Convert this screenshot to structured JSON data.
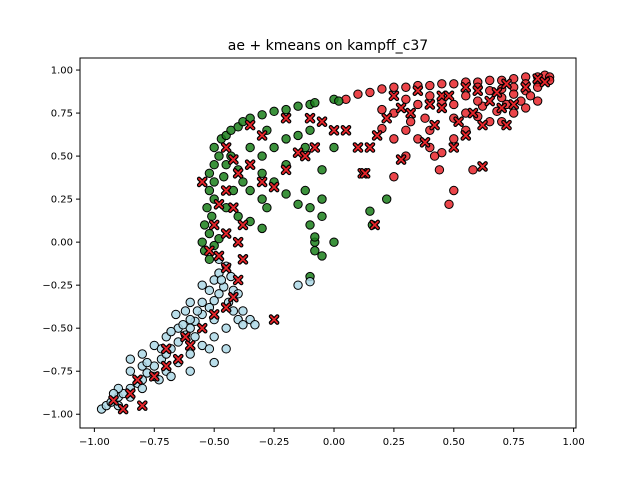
{
  "chart_data": {
    "type": "scatter",
    "title": "ae + kmeans on kampff_c37",
    "xlabel": "",
    "ylabel": "",
    "xlim": [
      -1.06,
      1.01
    ],
    "ylim": [
      -1.08,
      1.07
    ],
    "x_ticks": [
      -1.0,
      -0.75,
      -0.5,
      -0.25,
      0.0,
      0.25,
      0.5,
      0.75,
      1.0
    ],
    "x_tick_labels": [
      "−1.00",
      "−0.75",
      "−0.50",
      "−0.25",
      "0.00",
      "0.25",
      "0.50",
      "0.75",
      "1.00"
    ],
    "y_ticks": [
      -1.0,
      -0.75,
      -0.5,
      -0.25,
      0.0,
      0.25,
      0.5,
      0.75,
      1.0
    ],
    "y_tick_labels": [
      "−1.00",
      "−0.75",
      "−0.50",
      "−0.25",
      "0.00",
      "0.25",
      "0.50",
      "0.75",
      "1.00"
    ],
    "grid": false,
    "colors": {
      "cluster_red": "#e8252a",
      "cluster_green": "#1a7f1a",
      "cluster_lightblue": "#add8e6",
      "x_marker_fill": "#e8252a",
      "edge": "#000000"
    },
    "series": [
      {
        "marker": "circle",
        "color": "#e8252a",
        "points": [
          [
            0.05,
            0.83
          ],
          [
            0.1,
            0.86
          ],
          [
            0.15,
            0.87
          ],
          [
            0.2,
            0.89
          ],
          [
            0.25,
            0.9
          ],
          [
            0.3,
            0.9
          ],
          [
            0.35,
            0.91
          ],
          [
            0.4,
            0.91
          ],
          [
            0.45,
            0.92
          ],
          [
            0.5,
            0.92
          ],
          [
            0.55,
            0.93
          ],
          [
            0.6,
            0.93
          ],
          [
            0.65,
            0.94
          ],
          [
            0.7,
            0.94
          ],
          [
            0.75,
            0.95
          ],
          [
            0.8,
            0.96
          ],
          [
            0.85,
            0.96
          ],
          [
            0.88,
            0.97
          ],
          [
            0.9,
            0.96
          ],
          [
            0.6,
            0.9
          ],
          [
            0.65,
            0.88
          ],
          [
            0.7,
            0.89
          ],
          [
            0.75,
            0.9
          ],
          [
            0.8,
            0.92
          ],
          [
            0.85,
            0.93
          ],
          [
            0.7,
            0.84
          ],
          [
            0.75,
            0.86
          ],
          [
            0.8,
            0.88
          ],
          [
            0.85,
            0.9
          ],
          [
            0.62,
            0.79
          ],
          [
            0.68,
            0.76
          ],
          [
            0.72,
            0.8
          ],
          [
            0.78,
            0.82
          ],
          [
            0.82,
            0.85
          ],
          [
            0.55,
            0.85
          ],
          [
            0.6,
            0.82
          ],
          [
            0.5,
            0.8
          ],
          [
            0.45,
            0.82
          ],
          [
            0.4,
            0.85
          ],
          [
            0.35,
            0.8
          ],
          [
            0.3,
            0.83
          ],
          [
            0.25,
            0.75
          ],
          [
            0.2,
            0.77
          ],
          [
            0.2,
            0.66
          ],
          [
            0.25,
            0.6
          ],
          [
            0.3,
            0.65
          ],
          [
            0.35,
            0.6
          ],
          [
            0.4,
            0.55
          ],
          [
            0.45,
            0.52
          ],
          [
            0.5,
            0.6
          ],
          [
            0.55,
            0.65
          ],
          [
            0.25,
            0.38
          ],
          [
            0.3,
            0.5
          ],
          [
            0.4,
            0.65
          ],
          [
            0.42,
            0.5
          ],
          [
            0.5,
            0.3
          ],
          [
            0.58,
            0.42
          ],
          [
            0.44,
            0.42
          ],
          [
            0.48,
            0.22
          ],
          [
            0.6,
            0.73
          ],
          [
            0.65,
            0.7
          ],
          [
            0.7,
            0.7
          ],
          [
            0.75,
            0.75
          ],
          [
            0.8,
            0.78
          ],
          [
            0.85,
            0.82
          ],
          [
            0.9,
            0.94
          ],
          [
            0.55,
            0.75
          ],
          [
            0.5,
            0.72
          ],
          [
            0.38,
            0.72
          ],
          [
            0.32,
            0.7
          ]
        ]
      },
      {
        "marker": "circle",
        "color": "#1a7f1a",
        "points": [
          [
            -0.47,
            0.6
          ],
          [
            -0.45,
            0.62
          ],
          [
            -0.43,
            0.65
          ],
          [
            -0.4,
            0.67
          ],
          [
            -0.38,
            0.7
          ],
          [
            -0.35,
            0.72
          ],
          [
            -0.3,
            0.74
          ],
          [
            -0.25,
            0.76
          ],
          [
            -0.2,
            0.77
          ],
          [
            -0.15,
            0.79
          ],
          [
            -0.1,
            0.8
          ],
          [
            -0.08,
            0.81
          ],
          [
            0.0,
            0.83
          ],
          [
            0.02,
            0.82
          ],
          [
            -0.5,
            0.55
          ],
          [
            -0.48,
            0.5
          ],
          [
            -0.5,
            0.45
          ],
          [
            -0.52,
            0.4
          ],
          [
            -0.5,
            0.35
          ],
          [
            -0.52,
            0.3
          ],
          [
            -0.5,
            0.25
          ],
          [
            -0.53,
            0.2
          ],
          [
            -0.51,
            0.15
          ],
          [
            -0.54,
            0.1
          ],
          [
            -0.52,
            0.05
          ],
          [
            -0.55,
            0.0
          ],
          [
            -0.54,
            -0.05
          ],
          [
            -0.52,
            -0.1
          ],
          [
            -0.5,
            -0.02
          ],
          [
            -0.48,
            0.02
          ],
          [
            -0.45,
            0.45
          ],
          [
            -0.43,
            0.5
          ],
          [
            -0.4,
            0.42
          ],
          [
            -0.38,
            0.35
          ],
          [
            -0.35,
            0.3
          ],
          [
            -0.3,
            0.25
          ],
          [
            -0.28,
            0.2
          ],
          [
            -0.25,
            0.35
          ],
          [
            -0.2,
            0.28
          ],
          [
            -0.15,
            0.22
          ],
          [
            -0.12,
            0.3
          ],
          [
            -0.1,
            0.2
          ],
          [
            -0.05,
            0.25
          ],
          [
            -0.05,
            0.15
          ],
          [
            -0.1,
            0.1
          ],
          [
            -0.08,
            0.0
          ],
          [
            -0.08,
            -0.05
          ],
          [
            -0.05,
            -0.08
          ],
          [
            -0.1,
            -0.2
          ],
          [
            0.0,
            0.0
          ],
          [
            -0.08,
            0.03
          ],
          [
            -0.3,
            0.5
          ],
          [
            -0.25,
            0.55
          ],
          [
            -0.2,
            0.6
          ],
          [
            -0.15,
            0.62
          ],
          [
            -0.1,
            0.65
          ],
          [
            -0.12,
            0.55
          ],
          [
            -0.2,
            0.45
          ],
          [
            -0.3,
            0.4
          ],
          [
            -0.35,
            0.12
          ],
          [
            -0.3,
            0.08
          ],
          [
            -0.45,
            0.2
          ],
          [
            -0.4,
            0.15
          ],
          [
            -0.42,
            0.3
          ],
          [
            -0.46,
            0.38
          ],
          [
            -0.28,
            0.65
          ],
          [
            -0.35,
            0.55
          ],
          [
            0.15,
            0.18
          ],
          [
            0.16,
            0.1
          ],
          [
            0.22,
            0.25
          ],
          [
            0.0,
            0.55
          ],
          [
            -0.05,
            0.42
          ]
        ]
      },
      {
        "marker": "circle",
        "color": "#add8e6",
        "points": [
          [
            -0.97,
            -0.97
          ],
          [
            -0.95,
            -0.95
          ],
          [
            -0.93,
            -0.93
          ],
          [
            -0.9,
            -0.9
          ],
          [
            -0.88,
            -0.88
          ],
          [
            -0.85,
            -0.85
          ],
          [
            -0.82,
            -0.82
          ],
          [
            -0.8,
            -0.8
          ],
          [
            -0.78,
            -0.76
          ],
          [
            -0.75,
            -0.72
          ],
          [
            -0.72,
            -0.68
          ],
          [
            -0.7,
            -0.65
          ],
          [
            -0.68,
            -0.62
          ],
          [
            -0.65,
            -0.58
          ],
          [
            -0.62,
            -0.54
          ],
          [
            -0.6,
            -0.5
          ],
          [
            -0.58,
            -0.46
          ],
          [
            -0.55,
            -0.42
          ],
          [
            -0.52,
            -0.38
          ],
          [
            -0.5,
            -0.34
          ],
          [
            -0.48,
            -0.3
          ],
          [
            -0.46,
            -0.26
          ],
          [
            -0.5,
            -0.22
          ],
          [
            -0.48,
            -0.18
          ],
          [
            -0.45,
            -0.14
          ],
          [
            -0.42,
            -0.28
          ],
          [
            -0.42,
            -0.4
          ],
          [
            -0.4,
            -0.45
          ],
          [
            -0.38,
            -0.48
          ],
          [
            -0.45,
            -0.5
          ],
          [
            -0.5,
            -0.55
          ],
          [
            -0.55,
            -0.6
          ],
          [
            -0.6,
            -0.65
          ],
          [
            -0.65,
            -0.7
          ],
          [
            -0.7,
            -0.75
          ],
          [
            -0.75,
            -0.78
          ],
          [
            -0.8,
            -0.72
          ],
          [
            -0.85,
            -0.75
          ],
          [
            -0.85,
            -0.68
          ],
          [
            -0.8,
            -0.65
          ],
          [
            -0.75,
            -0.6
          ],
          [
            -0.7,
            -0.55
          ],
          [
            -0.65,
            -0.5
          ],
          [
            -0.6,
            -0.45
          ],
          [
            -0.55,
            -0.35
          ],
          [
            -0.52,
            -0.28
          ],
          [
            -0.55,
            -0.25
          ],
          [
            -0.6,
            -0.35
          ],
          [
            -0.62,
            -0.4
          ],
          [
            -0.66,
            -0.42
          ],
          [
            -0.58,
            -0.55
          ],
          [
            -0.52,
            -0.62
          ],
          [
            -0.5,
            -0.45
          ],
          [
            -0.44,
            -0.35
          ],
          [
            -0.4,
            -0.3
          ],
          [
            -0.38,
            -0.4
          ],
          [
            -0.35,
            -0.45
          ],
          [
            -0.33,
            -0.48
          ],
          [
            -0.6,
            -0.75
          ],
          [
            -0.68,
            -0.78
          ],
          [
            -0.9,
            -0.85
          ],
          [
            -0.92,
            -0.88
          ],
          [
            -0.15,
            -0.25
          ],
          [
            -0.1,
            -0.23
          ],
          [
            -0.5,
            -0.7
          ],
          [
            -0.45,
            -0.62
          ],
          [
            -0.9,
            -0.95
          ],
          [
            -0.85,
            -0.9
          ],
          [
            -0.8,
            -0.85
          ],
          [
            -0.73,
            -0.8
          ],
          [
            -0.78,
            -0.7
          ],
          [
            -0.72,
            -0.62
          ],
          [
            -0.68,
            -0.52
          ],
          [
            -0.63,
            -0.48
          ],
          [
            -0.57,
            -0.4
          ],
          [
            -0.47,
            -0.22
          ],
          [
            -0.43,
            -0.2
          ],
          [
            -0.48,
            -0.1
          ]
        ]
      },
      {
        "marker": "x",
        "color": "#e8252a",
        "points": [
          [
            0.25,
            0.85
          ],
          [
            0.35,
            0.88
          ],
          [
            0.45,
            0.85
          ],
          [
            0.55,
            0.9
          ],
          [
            0.6,
            0.88
          ],
          [
            0.68,
            0.87
          ],
          [
            0.72,
            0.92
          ],
          [
            0.8,
            0.9
          ],
          [
            0.85,
            0.95
          ],
          [
            0.88,
            0.93
          ],
          [
            0.65,
            0.82
          ],
          [
            0.7,
            0.78
          ],
          [
            0.75,
            0.8
          ],
          [
            0.58,
            0.75
          ],
          [
            0.52,
            0.7
          ],
          [
            0.45,
            0.78
          ],
          [
            0.4,
            0.8
          ],
          [
            0.32,
            0.75
          ],
          [
            0.28,
            0.78
          ],
          [
            0.22,
            0.72
          ],
          [
            0.18,
            0.62
          ],
          [
            0.28,
            0.48
          ],
          [
            0.5,
            0.55
          ],
          [
            0.55,
            0.62
          ],
          [
            0.62,
            0.44
          ],
          [
            0.42,
            0.68
          ],
          [
            0.38,
            0.58
          ],
          [
            0.48,
            0.85
          ],
          [
            0.62,
            0.68
          ],
          [
            0.72,
            0.68
          ],
          [
            -0.45,
            0.55
          ],
          [
            -0.42,
            0.48
          ],
          [
            -0.4,
            0.4
          ],
          [
            -0.35,
            0.45
          ],
          [
            -0.3,
            0.35
          ],
          [
            -0.25,
            0.32
          ],
          [
            -0.2,
            0.42
          ],
          [
            -0.15,
            0.52
          ],
          [
            -0.12,
            0.5
          ],
          [
            -0.08,
            0.55
          ],
          [
            -0.05,
            0.7
          ],
          [
            -0.1,
            0.72
          ],
          [
            -0.2,
            0.72
          ],
          [
            -0.3,
            0.62
          ],
          [
            -0.35,
            0.68
          ],
          [
            -0.45,
            0.3
          ],
          [
            -0.48,
            0.22
          ],
          [
            -0.5,
            0.1
          ],
          [
            -0.52,
            -0.05
          ],
          [
            -0.48,
            -0.08
          ],
          [
            -0.45,
            0.05
          ],
          [
            -0.4,
            0.0
          ],
          [
            -0.38,
            0.1
          ],
          [
            -0.42,
            0.2
          ],
          [
            -0.55,
            0.35
          ],
          [
            0.0,
            0.65
          ],
          [
            0.05,
            0.65
          ],
          [
            0.12,
            0.4
          ],
          [
            0.13,
            0.4
          ],
          [
            0.15,
            0.55
          ],
          [
            0.17,
            0.1
          ],
          [
            0.1,
            0.55
          ],
          [
            -0.88,
            -0.97
          ],
          [
            -0.85,
            -0.88
          ],
          [
            -0.82,
            -0.8
          ],
          [
            -0.75,
            -0.78
          ],
          [
            -0.7,
            -0.72
          ],
          [
            -0.65,
            -0.68
          ],
          [
            -0.6,
            -0.6
          ],
          [
            -0.55,
            -0.5
          ],
          [
            -0.5,
            -0.42
          ],
          [
            -0.45,
            -0.38
          ],
          [
            -0.42,
            -0.32
          ],
          [
            -0.4,
            -0.22
          ],
          [
            -0.45,
            -0.15
          ],
          [
            -0.38,
            -0.1
          ],
          [
            -0.25,
            -0.45
          ],
          [
            -0.7,
            -0.62
          ],
          [
            -0.92,
            -0.92
          ],
          [
            -0.8,
            -0.95
          ],
          [
            -0.62,
            -0.55
          ]
        ]
      }
    ]
  }
}
